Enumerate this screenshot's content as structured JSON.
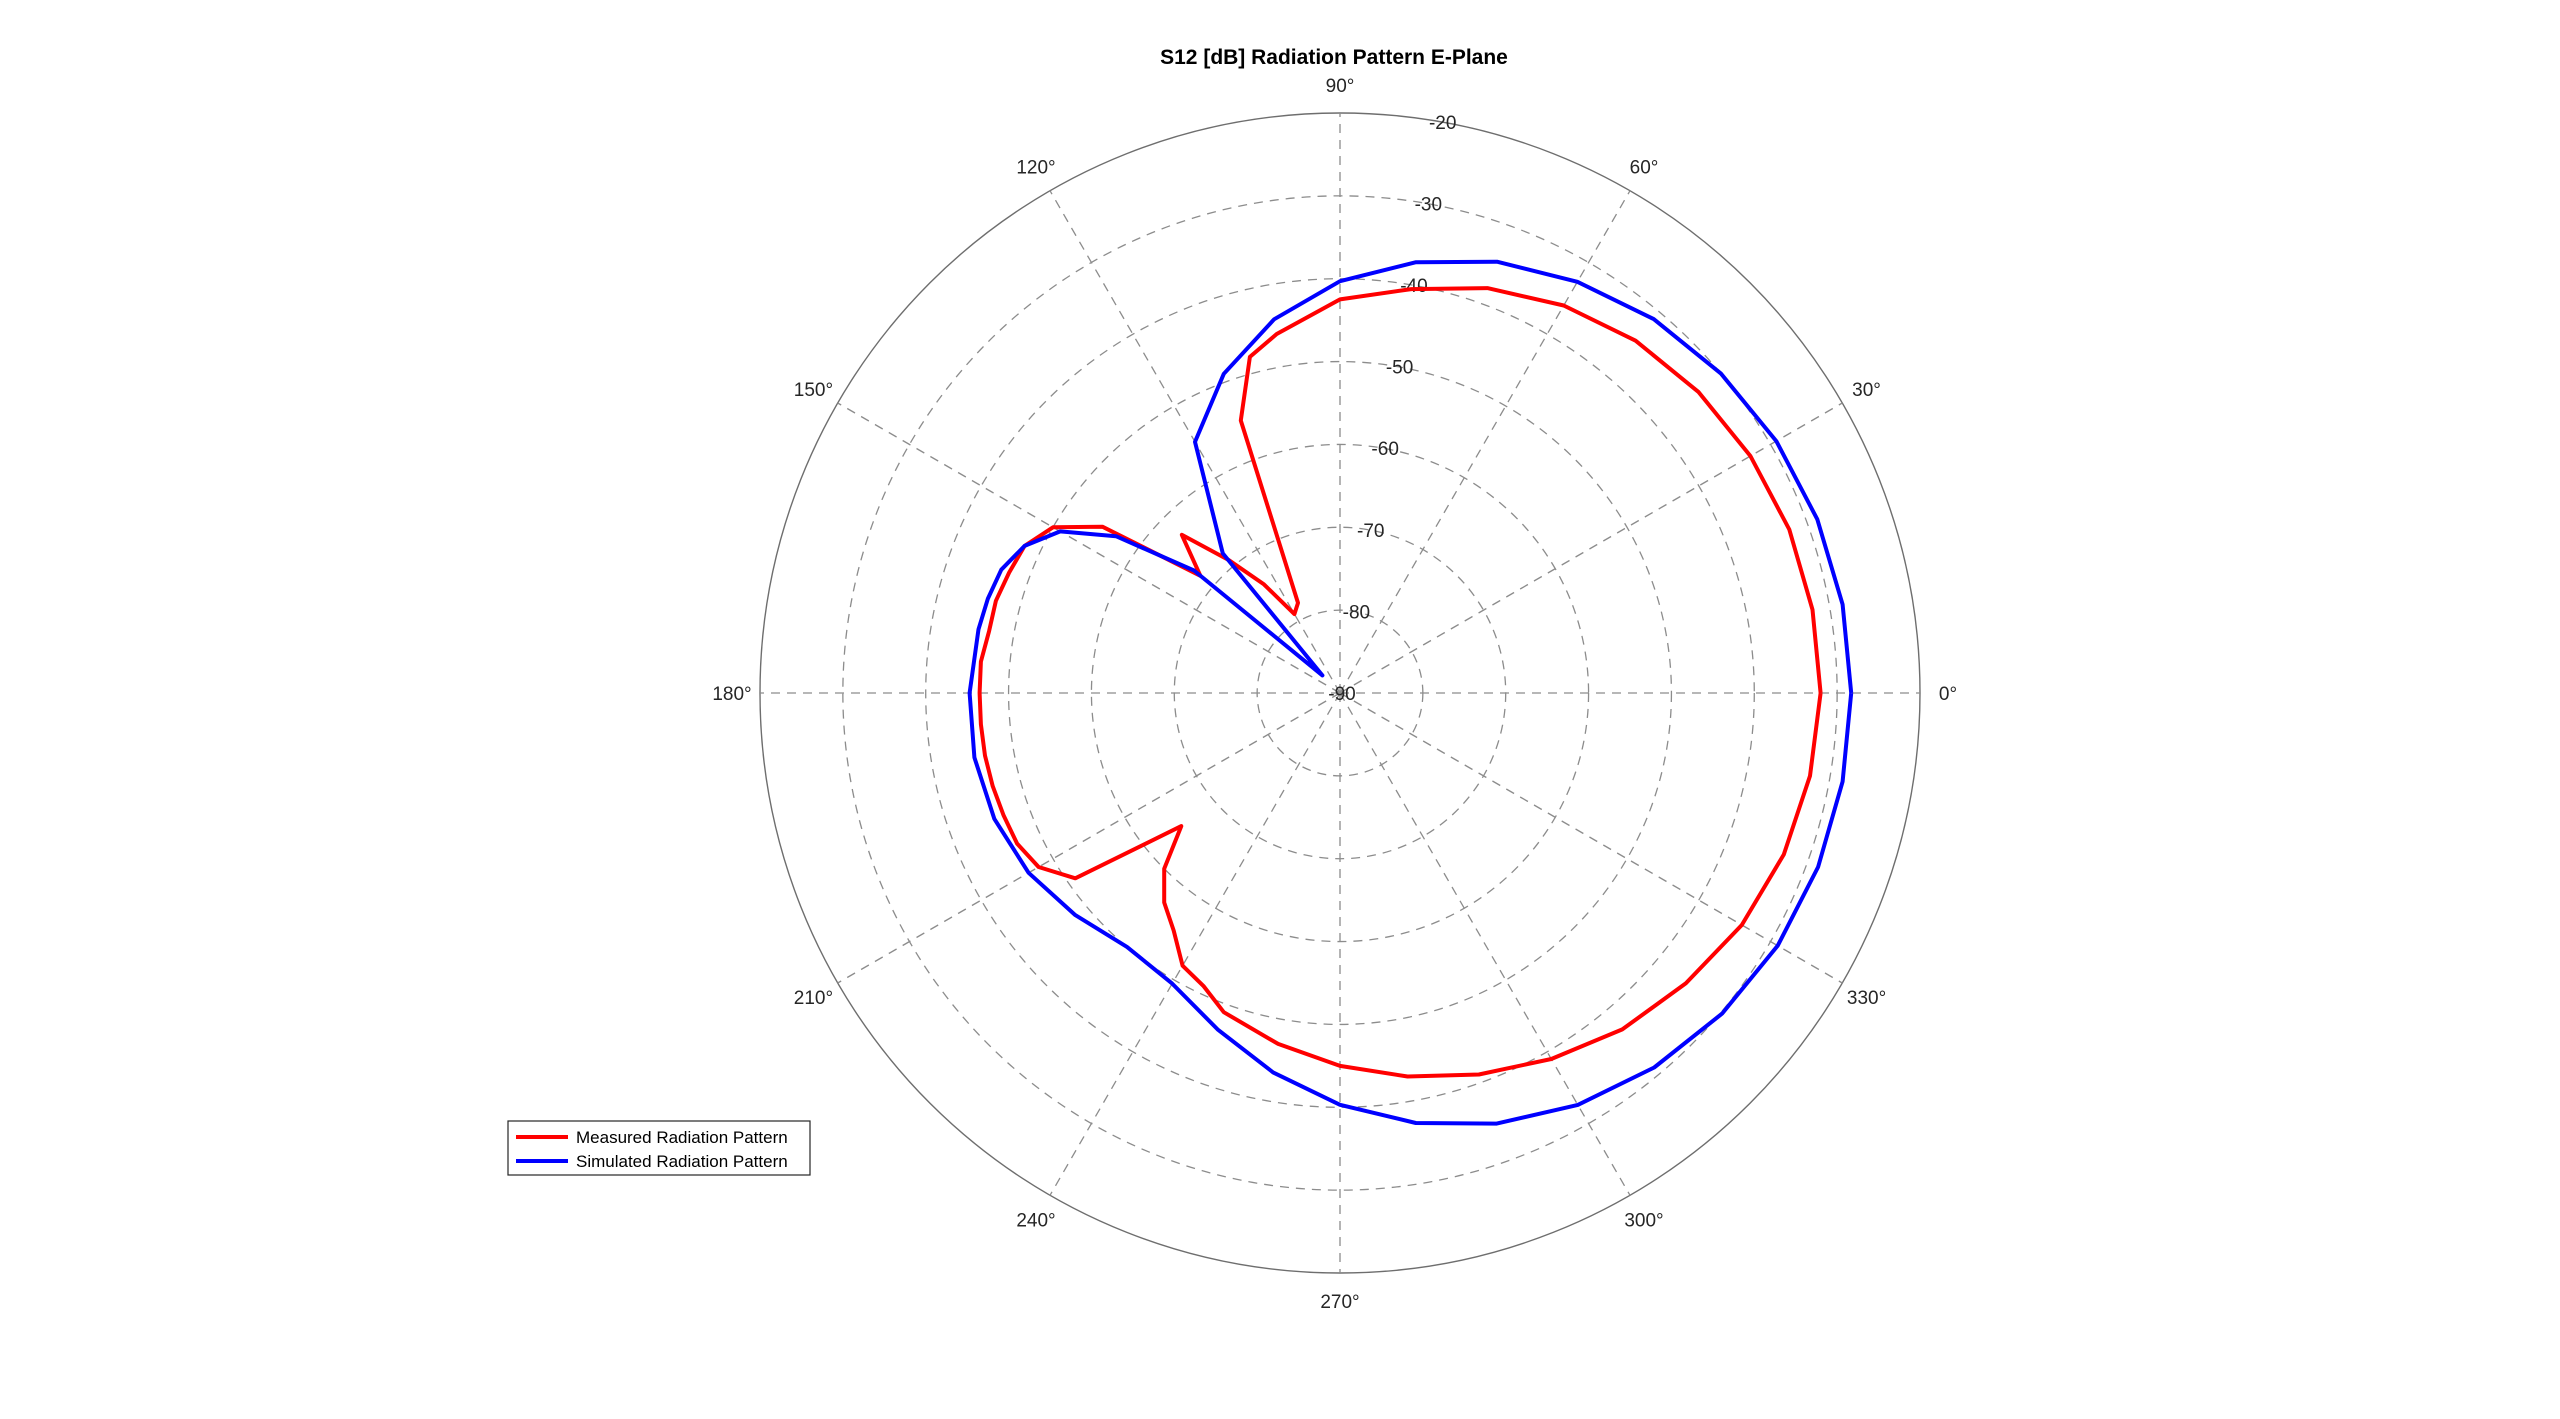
{
  "chart_data": {
    "type": "polar-line",
    "title": "S12 [dB] Radiation Pattern E-Plane",
    "rlim": [
      -90,
      -20
    ],
    "r_ticks": [
      -90,
      -80,
      -70,
      -60,
      -50,
      -40,
      -30,
      -20
    ],
    "r_tick_labels": [
      "-90",
      "-80",
      "-70",
      "-60",
      "-50",
      "-40",
      "-30",
      "-20"
    ],
    "theta_ticks": [
      0,
      30,
      60,
      90,
      120,
      150,
      180,
      210,
      240,
      270,
      300,
      330
    ],
    "theta_tick_labels": [
      "0°",
      "30°",
      "60°",
      "90°",
      "120°",
      "150°",
      "180°",
      "210°",
      "240°",
      "270°",
      "300°",
      "330°"
    ],
    "grid": true,
    "legend_location": "bottom-left",
    "series": [
      {
        "name": "Measured Radiation Pattern",
        "color": "#ff0000",
        "theta": [
          0,
          10,
          20,
          30,
          40,
          50,
          60,
          70,
          80,
          90,
          100,
          105,
          110,
          115,
          120,
          125,
          130,
          135,
          140,
          145,
          150,
          155,
          160,
          165,
          170,
          175,
          180,
          185,
          190,
          195,
          200,
          205,
          210,
          215,
          220,
          225,
          230,
          235,
          240,
          245,
          250,
          260,
          270,
          280,
          290,
          300,
          310,
          320,
          330,
          340,
          350,
          360
        ],
        "r": [
          -32,
          -32.1,
          -32.3,
          -32.8,
          -33.5,
          -34.5,
          -36,
          -38,
          -40.5,
          -42.5,
          -46,
          -48,
          -55,
          -78,
          -79,
          -74,
          -69,
          -63,
          -68,
          -55,
          -50,
          -48,
          -47.5,
          -47,
          -47,
          -46.5,
          -46.5,
          -46.5,
          -46.5,
          -46.6,
          -46.8,
          -47,
          -48,
          -51,
          -65,
          -60,
          -57,
          -55,
          -52,
          -51,
          -49,
          -47,
          -45,
          -43,
          -41,
          -39,
          -37,
          -35.5,
          -34,
          -33,
          -32.4,
          -32
        ]
      },
      {
        "name": "Simulated Radiation Pattern",
        "color": "#0000ff",
        "theta": [
          0,
          10,
          20,
          30,
          40,
          50,
          60,
          70,
          80,
          90,
          100,
          110,
          120,
          130,
          135,
          140,
          145,
          150,
          155,
          160,
          165,
          170,
          180,
          190,
          200,
          210,
          220,
          230,
          240,
          250,
          260,
          270,
          280,
          290,
          300,
          310,
          320,
          330,
          340,
          350,
          360
        ],
        "r": [
          -28.3,
          -28.4,
          -28.7,
          -29.2,
          -30,
          -31.1,
          -32.7,
          -34.6,
          -37.2,
          -40.3,
          -44.2,
          -49,
          -55,
          -68,
          -87,
          -67,
          -57,
          -51,
          -48,
          -46.5,
          -46,
          -45.7,
          -45.3,
          -45.2,
          -45.6,
          -46.6,
          -48.3,
          -50,
          -49.5,
          -46.8,
          -43.5,
          -40.3,
          -37.3,
          -34.7,
          -32.6,
          -31,
          -29.8,
          -29,
          -28.6,
          -28.4,
          -28.3
        ]
      }
    ]
  }
}
